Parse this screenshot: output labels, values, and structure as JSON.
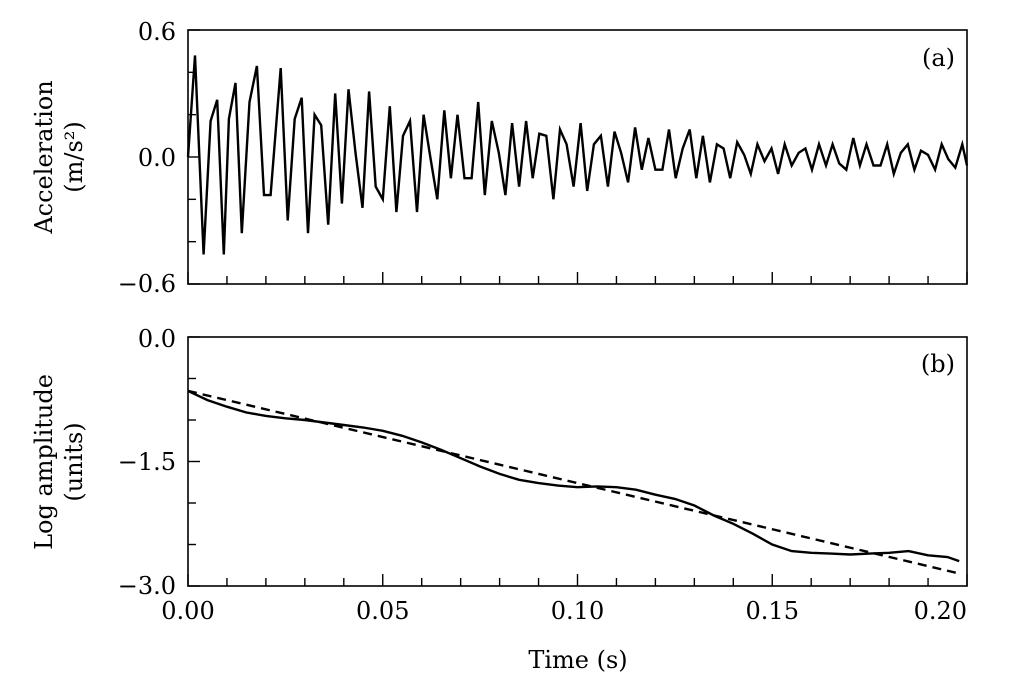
{
  "chart_data": [
    {
      "type": "line",
      "panel_label": "(a)",
      "ylabel_line1": "Acceleration",
      "ylabel_line2": "(m/s²)",
      "xlim": [
        0.0,
        0.2
      ],
      "ylim": [
        -0.6,
        0.6
      ],
      "yticks": [
        -0.6,
        0.0,
        0.6
      ],
      "ytick_labels": [
        "−0.6",
        "0.0",
        "0.6"
      ],
      "grid": false,
      "series": [
        {
          "style": "solid",
          "x": [
            0.0,
            0.0018,
            0.004,
            0.0058,
            0.0075,
            0.0092,
            0.0105,
            0.0122,
            0.0138,
            0.0158,
            0.0177,
            0.0195,
            0.0212,
            0.0238,
            0.0256,
            0.0274,
            0.0292,
            0.0308,
            0.0325,
            0.0342,
            0.036,
            0.0378,
            0.0395,
            0.0412,
            0.043,
            0.0448,
            0.0465,
            0.0482,
            0.05,
            0.0518,
            0.0535,
            0.0552,
            0.057,
            0.0588,
            0.0605,
            0.0622,
            0.064,
            0.0658,
            0.0675,
            0.0692,
            0.071,
            0.0728,
            0.0745,
            0.0762,
            0.078,
            0.0798,
            0.0815,
            0.0832,
            0.085,
            0.0868,
            0.0885,
            0.0902,
            0.092,
            0.0938,
            0.0955,
            0.0972,
            0.099,
            0.1008,
            0.1025,
            0.1042,
            0.106,
            0.1078,
            0.1095,
            0.1112,
            0.113,
            0.1148,
            0.1165,
            0.1182,
            0.12,
            0.1218,
            0.1235,
            0.1252,
            0.127,
            0.1288,
            0.1305,
            0.1322,
            0.134,
            0.1358,
            0.1375,
            0.1392,
            0.141,
            0.1428,
            0.1445,
            0.1462,
            0.148,
            0.1498,
            0.1515,
            0.1532,
            0.155,
            0.1568,
            0.1585,
            0.1602,
            0.162,
            0.1638,
            0.1655,
            0.1672,
            0.169,
            0.1708,
            0.1725,
            0.1742,
            0.176,
            0.1778,
            0.1795,
            0.1812,
            0.183,
            0.1848,
            0.1865,
            0.1882,
            0.19,
            0.1918,
            0.1935,
            0.1952,
            0.197,
            0.1988,
            0.2
          ],
          "y": [
            0.0,
            0.48,
            -0.46,
            0.17,
            0.27,
            -0.46,
            0.18,
            0.35,
            -0.36,
            0.26,
            0.43,
            -0.18,
            -0.18,
            0.42,
            -0.3,
            0.18,
            0.28,
            -0.36,
            0.2,
            0.15,
            -0.32,
            0.3,
            -0.22,
            0.32,
            0.02,
            -0.24,
            0.31,
            -0.14,
            -0.2,
            0.24,
            -0.26,
            0.1,
            0.17,
            -0.26,
            0.2,
            0.0,
            -0.2,
            0.22,
            -0.1,
            0.2,
            -0.1,
            -0.1,
            0.26,
            -0.18,
            0.17,
            0.02,
            -0.18,
            0.16,
            -0.14,
            0.17,
            -0.1,
            0.11,
            0.1,
            -0.2,
            0.13,
            0.06,
            -0.14,
            0.16,
            -0.16,
            0.06,
            0.1,
            -0.14,
            0.12,
            0.02,
            -0.12,
            0.14,
            -0.06,
            0.09,
            -0.06,
            -0.06,
            0.13,
            -0.1,
            0.04,
            0.13,
            -0.1,
            0.1,
            -0.12,
            0.06,
            0.04,
            -0.1,
            0.07,
            0.01,
            -0.08,
            0.06,
            -0.02,
            0.04,
            -0.08,
            0.06,
            -0.04,
            0.02,
            0.04,
            -0.06,
            0.06,
            -0.04,
            0.06,
            -0.03,
            -0.06,
            0.09,
            -0.04,
            0.06,
            -0.04,
            -0.04,
            0.06,
            -0.08,
            0.02,
            0.06,
            -0.06,
            0.03,
            0.01,
            -0.06,
            0.06,
            -0.01,
            -0.05,
            0.06,
            -0.04
          ]
        }
      ]
    },
    {
      "type": "line",
      "panel_label": "(b)",
      "ylabel_line1": "Log amplitude",
      "ylabel_line2": "(units)",
      "xlabel": "Time (s)",
      "xlim": [
        0.0,
        0.2
      ],
      "ylim": [
        -3.0,
        0.0
      ],
      "xticks": [
        0.0,
        0.05,
        0.1,
        0.15,
        0.2
      ],
      "xtick_labels": [
        "0.00",
        "0.05",
        "0.10",
        "0.15",
        "0.20"
      ],
      "yticks": [
        -3.0,
        -1.5,
        0.0
      ],
      "ytick_labels": [
        "−3.0",
        "−1.5",
        "0.0"
      ],
      "grid": false,
      "series": [
        {
          "style": "solid",
          "x": [
            0.0,
            0.005,
            0.01,
            0.015,
            0.02,
            0.025,
            0.03,
            0.035,
            0.04,
            0.045,
            0.05,
            0.055,
            0.06,
            0.065,
            0.07,
            0.075,
            0.08,
            0.085,
            0.09,
            0.095,
            0.1,
            0.105,
            0.11,
            0.115,
            0.12,
            0.125,
            0.13,
            0.135,
            0.14,
            0.145,
            0.15,
            0.155,
            0.16,
            0.165,
            0.17,
            0.175,
            0.18,
            0.185,
            0.19,
            0.195,
            0.198
          ],
          "y": [
            -0.65,
            -0.76,
            -0.84,
            -0.91,
            -0.95,
            -0.98,
            -1.0,
            -1.03,
            -1.06,
            -1.09,
            -1.13,
            -1.19,
            -1.27,
            -1.36,
            -1.46,
            -1.56,
            -1.65,
            -1.72,
            -1.76,
            -1.79,
            -1.81,
            -1.8,
            -1.81,
            -1.84,
            -1.9,
            -1.95,
            -2.03,
            -2.15,
            -2.25,
            -2.37,
            -2.5,
            -2.58,
            -2.6,
            -2.61,
            -2.62,
            -2.61,
            -2.6,
            -2.58,
            -2.63,
            -2.65,
            -2.7
          ]
        },
        {
          "style": "dashed",
          "x": [
            0.0,
            0.198
          ],
          "y": [
            -0.65,
            -2.85
          ]
        }
      ]
    }
  ]
}
